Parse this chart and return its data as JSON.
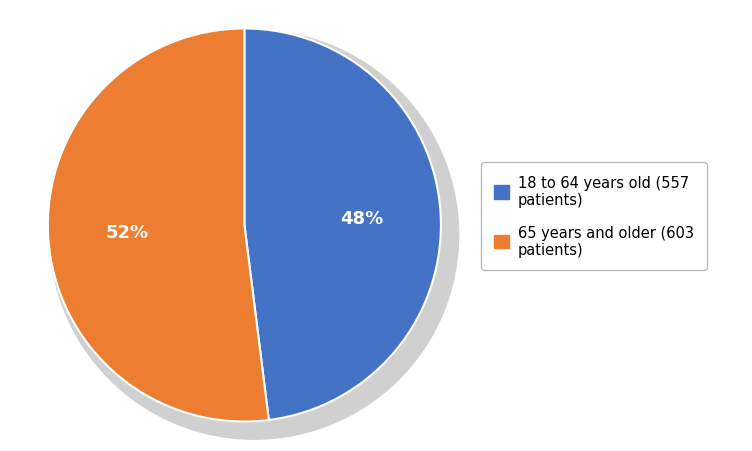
{
  "slices": [
    557,
    603
  ],
  "labels": [
    "18 to 64 years old (557\npatients)",
    "65 years and older (603\npatients)"
  ],
  "colors": [
    "#4472C4",
    "#ED7D31"
  ],
  "pct_labels": [
    "48%",
    "52%"
  ],
  "background_color": "#ffffff",
  "legend_fontsize": 10.5,
  "pct_fontsize": 13,
  "startangle": 90,
  "shadow_color": "#d0d0d0"
}
